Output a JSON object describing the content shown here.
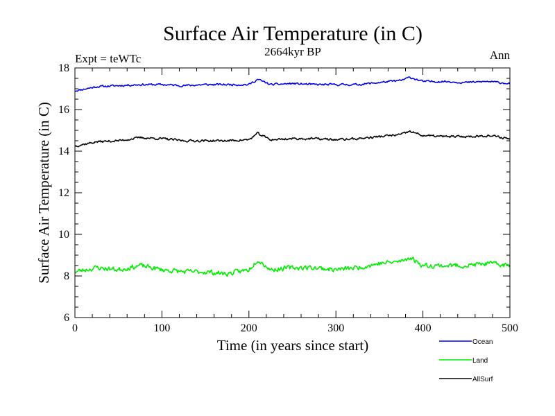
{
  "chart_data": {
    "type": "line",
    "title": "Surface Air Temperature (in C)",
    "subtitle": "2664kyr BP",
    "left_label": "Expt = teWTc",
    "right_label": "Ann",
    "xlabel": "Time (in years since start)",
    "ylabel": "Surface Air Temperature (in C)",
    "xlim": [
      0,
      500
    ],
    "ylim": [
      6,
      18
    ],
    "xticks": [
      0,
      100,
      200,
      300,
      400,
      500
    ],
    "yticks": [
      6,
      8,
      10,
      12,
      14,
      16,
      18
    ],
    "grid": false,
    "legend_position": "bottom-right",
    "series": [
      {
        "name": "Ocean",
        "color": "#0000ee",
        "x": [
          0,
          25,
          50,
          75,
          100,
          125,
          150,
          175,
          200,
          210,
          225,
          250,
          275,
          300,
          325,
          350,
          375,
          385,
          400,
          425,
          450,
          475,
          500
        ],
        "values": [
          16.9,
          17.1,
          17.15,
          17.2,
          17.2,
          17.15,
          17.2,
          17.2,
          17.2,
          17.45,
          17.2,
          17.25,
          17.2,
          17.2,
          17.2,
          17.3,
          17.4,
          17.55,
          17.35,
          17.35,
          17.3,
          17.35,
          17.25
        ]
      },
      {
        "name": "Land",
        "color": "#00ee00",
        "x": [
          0,
          25,
          50,
          75,
          100,
          125,
          150,
          175,
          200,
          210,
          225,
          250,
          275,
          300,
          325,
          350,
          375,
          385,
          400,
          425,
          450,
          475,
          500
        ],
        "values": [
          8.2,
          8.4,
          8.3,
          8.5,
          8.3,
          8.2,
          8.2,
          8.1,
          8.3,
          8.8,
          8.3,
          8.4,
          8.4,
          8.3,
          8.4,
          8.6,
          8.7,
          8.9,
          8.5,
          8.5,
          8.5,
          8.6,
          8.5
        ]
      },
      {
        "name": "AllSurf",
        "color": "#000000",
        "x": [
          0,
          25,
          50,
          75,
          100,
          125,
          150,
          175,
          200,
          210,
          225,
          250,
          275,
          300,
          325,
          350,
          375,
          385,
          400,
          425,
          450,
          475,
          500
        ],
        "values": [
          14.25,
          14.45,
          14.5,
          14.65,
          14.6,
          14.5,
          14.5,
          14.5,
          14.55,
          14.85,
          14.55,
          14.6,
          14.6,
          14.55,
          14.6,
          14.7,
          14.8,
          14.95,
          14.75,
          14.7,
          14.7,
          14.75,
          14.6
        ]
      }
    ]
  }
}
